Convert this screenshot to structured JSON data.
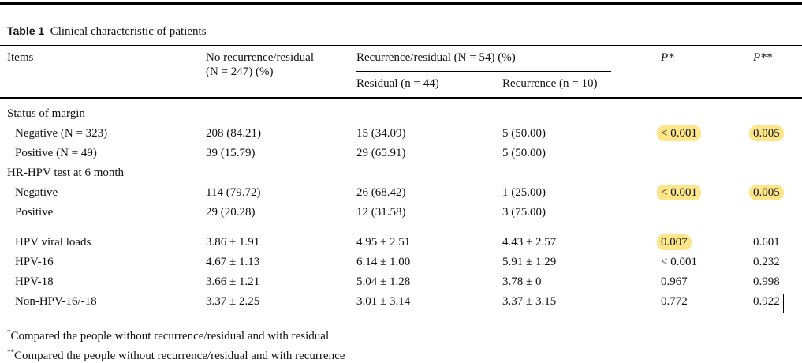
{
  "table": {
    "label": "Table 1",
    "caption": "Clinical characteristic of patients",
    "headers": {
      "items": "Items",
      "no_rec_1": "No recurrence/residual",
      "no_rec_2": "(N = 247) (%)",
      "rec_group": "Recurrence/residual (N = 54) (%)",
      "residual": "Residual (n = 44)",
      "recurrence": "Recurrence (n = 10)",
      "p1": "P*",
      "p2": "P**"
    },
    "rows": [
      {
        "item": "Status of margin",
        "section": true
      },
      {
        "item": "Negative (N = 323)",
        "c1": "208 (84.21)",
        "c2": "15 (34.09)",
        "c3": "5 (50.00)",
        "p1": "< 0.001",
        "p2": "0.005",
        "h1": true,
        "h2": true
      },
      {
        "item": "Positive (N = 49)",
        "c1": "39 (15.79)",
        "c2": "29 (65.91)",
        "c3": "5 (50.00)"
      },
      {
        "item": "HR-HPV test at 6 month",
        "section": true
      },
      {
        "item": "Negative",
        "c1": "114 (79.72)",
        "c2": "26 (68.42)",
        "c3": "1 (25.00)",
        "p1": "< 0.001",
        "p2": "0.005",
        "h1": true,
        "h2": true
      },
      {
        "item": "Positive",
        "c1": "29 (20.28)",
        "c2": "12 (31.58)",
        "c3": "3 (75.00)"
      },
      {
        "item": "HPV viral loads",
        "c1": "3.86 ± 1.91",
        "c2": "4.95 ± 2.51",
        "c3": "4.43 ± 2.57",
        "p1": "0.007",
        "p2": "0.601",
        "h1": true
      },
      {
        "item": "HPV-16",
        "c1": "4.67 ± 1.13",
        "c2": "6.14 ± 1.00",
        "c3": "5.91 ± 1.29",
        "p1": "< 0.001",
        "p2": "0.232"
      },
      {
        "item": "HPV-18",
        "c1": "3.66 ± 1.21",
        "c2": "5.04 ± 1.28",
        "c3": "3.78 ± 0",
        "p1": "0.967",
        "p2": "0.998"
      },
      {
        "item": "Non-HPV-16/-18",
        "c1": "3.37 ± 2.25",
        "c2": "3.01 ± 3.14",
        "c3": "3.37 ± 3.15",
        "p1": "0.772",
        "p2": "0.922"
      }
    ],
    "footnotes": [
      {
        "mark": "*",
        "text": "Compared the people without recurrence/residual and with residual"
      },
      {
        "mark": "**",
        "text": "Compared the people without recurrence/residual and with recurrence"
      }
    ],
    "highlight_color": "#fde68a"
  }
}
